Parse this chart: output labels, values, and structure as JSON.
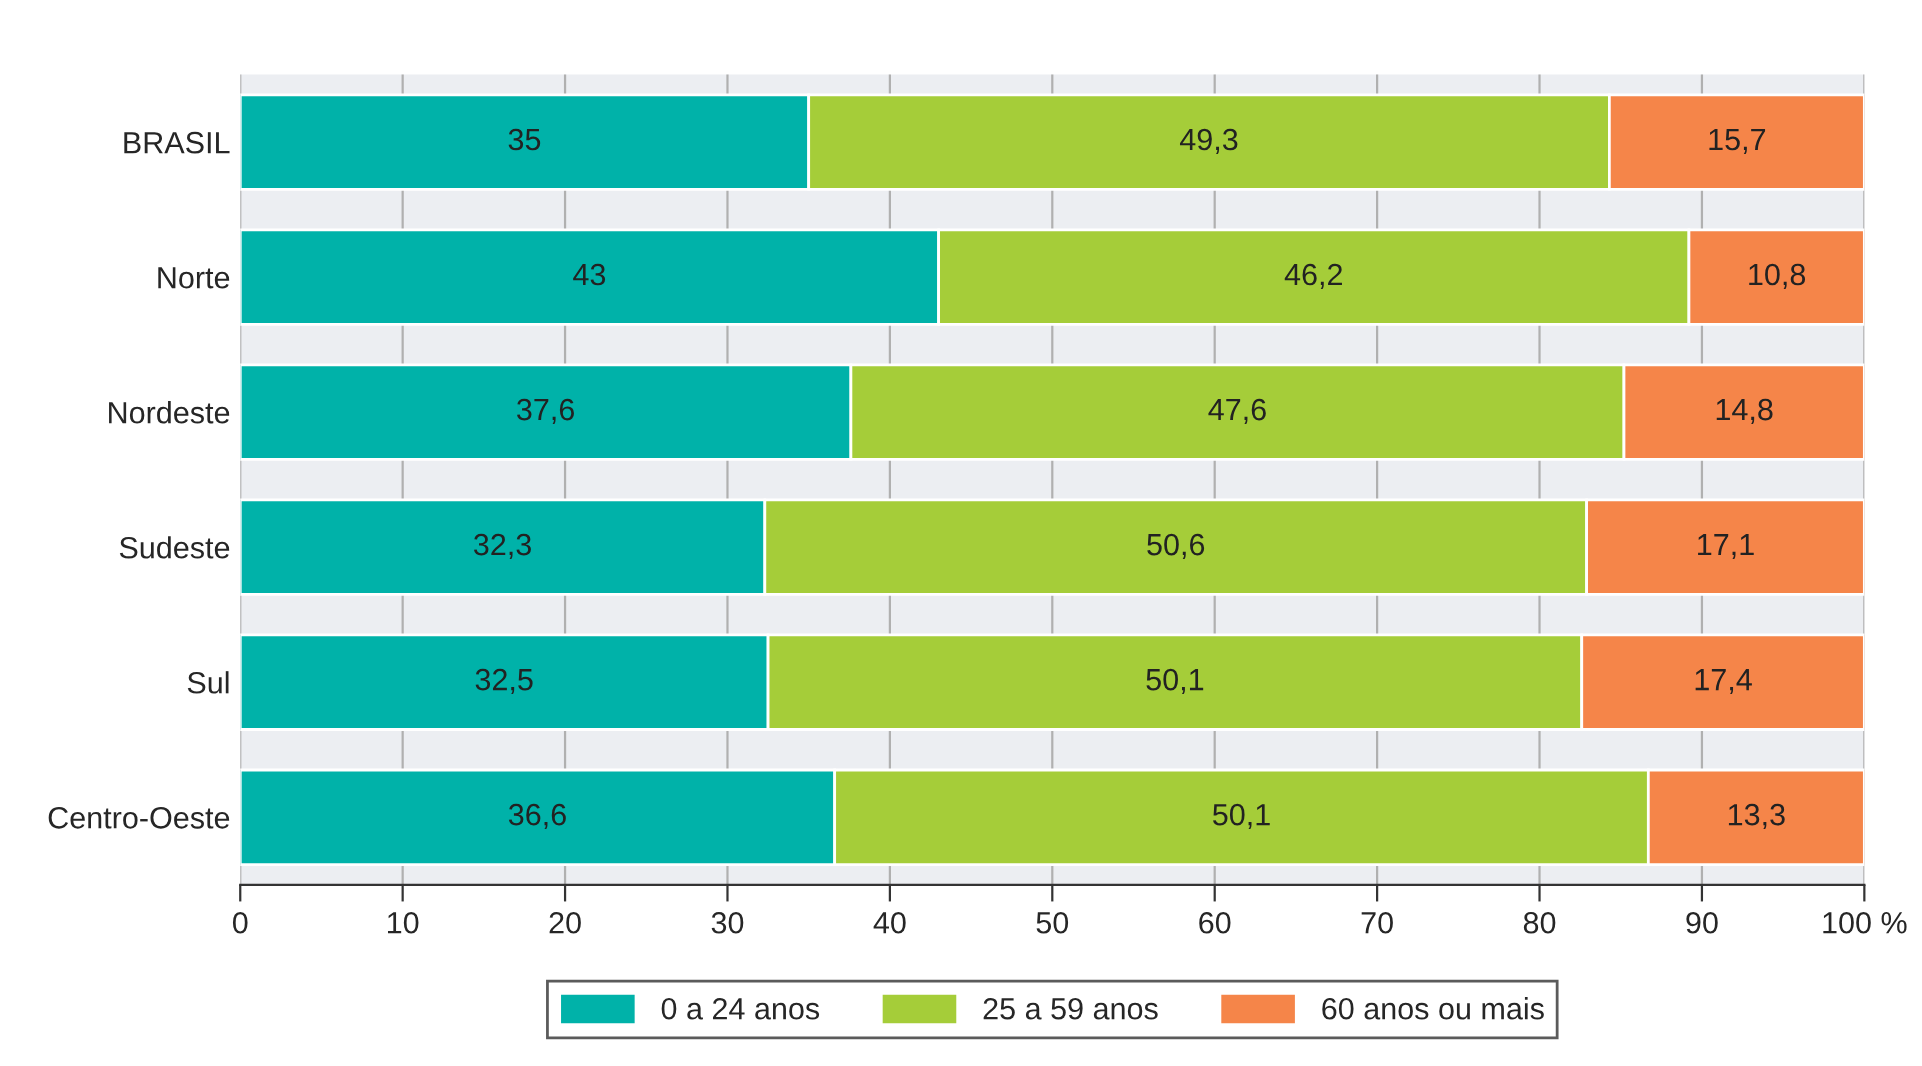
{
  "chart_data": {
    "type": "bar",
    "orientation": "horizontal",
    "stacked": true,
    "grid": "x",
    "legend": "bottom",
    "categories": [
      "BRASIL",
      "Norte",
      "Nordeste",
      "Sudeste",
      "Sul",
      "Centro-Oeste"
    ],
    "series": [
      {
        "name": "0 a 24 anos",
        "color": "#00b2a9",
        "values": [
          35,
          43,
          37.6,
          32.3,
          32.5,
          36.6
        ],
        "value_labels": [
          "35",
          "43",
          "37,6",
          "32,3",
          "32,5",
          "36,6"
        ]
      },
      {
        "name": "25 a 59 anos",
        "color": "#a5cd39",
        "values": [
          49.3,
          46.2,
          47.6,
          50.6,
          50.1,
          50.1
        ],
        "value_labels": [
          "49,3",
          "46,2",
          "47,6",
          "50,6",
          "50,1",
          "50,1"
        ]
      },
      {
        "name": "60 anos ou mais",
        "color": "#f58549",
        "values": [
          15.7,
          10.8,
          14.8,
          17.1,
          17.4,
          13.3
        ],
        "value_labels": [
          "15,7",
          "10,8",
          "14,8",
          "17,1",
          "17,4",
          "13,3"
        ]
      }
    ],
    "xlim": [
      0,
      100
    ],
    "xticks": [
      0,
      10,
      20,
      30,
      40,
      50,
      60,
      70,
      80,
      90,
      {
        "value": 100,
        "label": "100 %"
      }
    ]
  }
}
